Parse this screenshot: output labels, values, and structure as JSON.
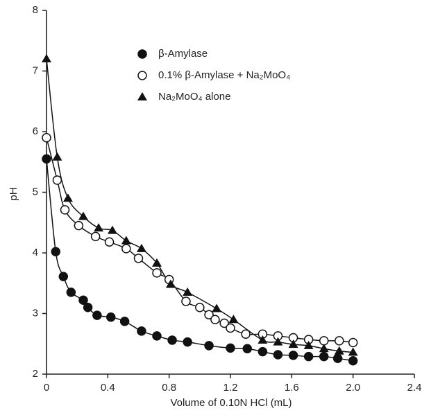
{
  "chart_data": {
    "type": "scatter",
    "xlabel": "Volume of 0.10N HCl (mL)",
    "ylabel": "pH",
    "xlim": [
      0,
      2.4
    ],
    "ylim": [
      2,
      8
    ],
    "xticks": [
      0,
      0.4,
      0.8,
      1.2,
      1.6,
      {
        "value": 2,
        "label": "2.0"
      },
      2.4
    ],
    "yticks": [
      2,
      3,
      4,
      5,
      6,
      7,
      8
    ],
    "legend": "top",
    "series": [
      {
        "name": "β-Amylase",
        "color": "#111111",
        "marker": "circle",
        "x": [
          0,
          0.06,
          0.11,
          0.16,
          0.24,
          0.27,
          0.33,
          0.42,
          0.51,
          0.62,
          0.72,
          0.82,
          0.92,
          1.06,
          1.2,
          1.31,
          1.41,
          1.51,
          1.61,
          1.71,
          1.81,
          1.9,
          2.0
        ],
        "values": [
          5.55,
          4.02,
          3.61,
          3.35,
          3.22,
          3.1,
          2.97,
          2.94,
          2.87,
          2.71,
          2.63,
          2.56,
          2.53,
          2.47,
          2.43,
          2.42,
          2.37,
          2.32,
          2.31,
          2.29,
          2.29,
          2.26,
          2.22
        ]
      },
      {
        "name": "0.1% β-Amylase + Na₂MoO₄",
        "color": "#111111",
        "marker": "open-circle",
        "x": [
          0,
          0.07,
          0.12,
          0.21,
          0.32,
          0.41,
          0.52,
          0.6,
          0.72,
          0.8,
          0.91,
          1.0,
          1.06,
          1.1,
          1.16,
          1.2,
          1.3,
          1.41,
          1.51,
          1.61,
          1.71,
          1.81,
          1.91,
          2.0
        ],
        "values": [
          5.9,
          5.2,
          4.71,
          4.45,
          4.27,
          4.18,
          4.07,
          3.91,
          3.67,
          3.56,
          3.2,
          3.1,
          2.98,
          2.9,
          2.84,
          2.76,
          2.66,
          2.66,
          2.63,
          2.6,
          2.57,
          2.55,
          2.55,
          2.52
        ]
      },
      {
        "name": "Na₂MoO₄  alone",
        "color": "#111111",
        "marker": "triangle",
        "x": [
          0,
          0.07,
          0.14,
          0.24,
          0.34,
          0.43,
          0.52,
          0.62,
          0.72,
          0.81,
          0.92,
          1.11,
          1.22,
          1.41,
          1.51,
          1.61,
          1.71,
          1.81,
          1.91,
          2.0
        ],
        "values": [
          7.2,
          5.58,
          4.9,
          4.6,
          4.41,
          4.37,
          4.2,
          4.07,
          3.83,
          3.48,
          3.35,
          3.08,
          2.9,
          2.56,
          2.53,
          2.49,
          2.47,
          2.42,
          2.38,
          2.36
        ]
      }
    ]
  }
}
